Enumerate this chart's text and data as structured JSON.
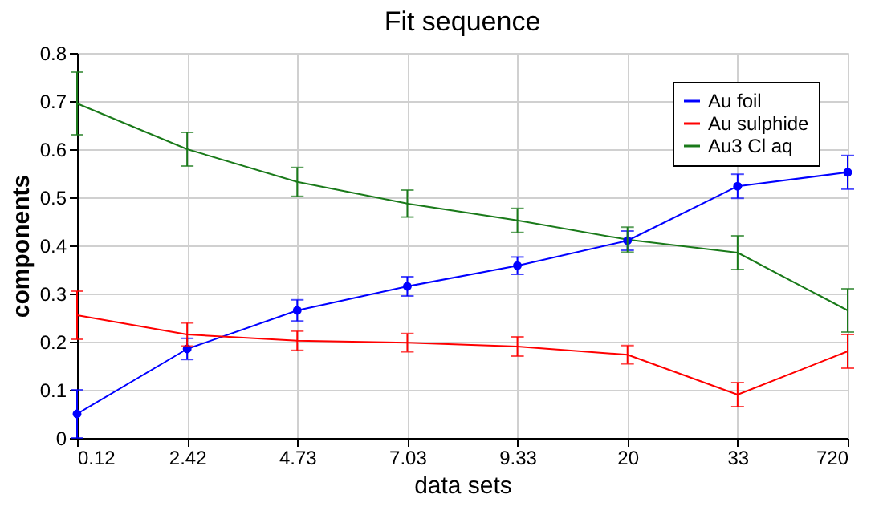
{
  "chart_data": {
    "type": "line",
    "title": "Fit sequence",
    "xlabel": "data sets",
    "ylabel": "components",
    "categories": [
      "0.12",
      "2.42",
      "4.73",
      "7.03",
      "9.33",
      "20",
      "33",
      "720"
    ],
    "series": [
      {
        "name": "Au foil",
        "color": "#0000ff",
        "marker": "circle",
        "values": [
          0.05,
          0.185,
          0.265,
          0.315,
          0.358,
          0.41,
          0.523,
          0.552
        ],
        "errors": [
          0.05,
          0.022,
          0.022,
          0.02,
          0.018,
          0.02,
          0.025,
          0.035
        ]
      },
      {
        "name": "Au sulphide",
        "color": "#ff0000",
        "marker": "none",
        "values": [
          0.255,
          0.215,
          0.202,
          0.198,
          0.19,
          0.173,
          0.09,
          0.18
        ],
        "errors": [
          0.05,
          0.024,
          0.02,
          0.019,
          0.02,
          0.019,
          0.025,
          0.035
        ]
      },
      {
        "name": "Au3 Cl aq",
        "color": "#1a7a1a",
        "marker": "none",
        "values": [
          0.695,
          0.6,
          0.532,
          0.487,
          0.452,
          0.412,
          0.385,
          0.265
        ],
        "errors": [
          0.065,
          0.035,
          0.03,
          0.028,
          0.025,
          0.026,
          0.035,
          0.045
        ]
      }
    ],
    "ylim": [
      0,
      0.8
    ],
    "yticks": [
      0,
      0.1,
      0.2,
      0.3,
      0.4,
      0.5,
      0.6,
      0.7,
      0.8
    ],
    "grid": true,
    "legend": "top right",
    "line_style": "solid"
  }
}
